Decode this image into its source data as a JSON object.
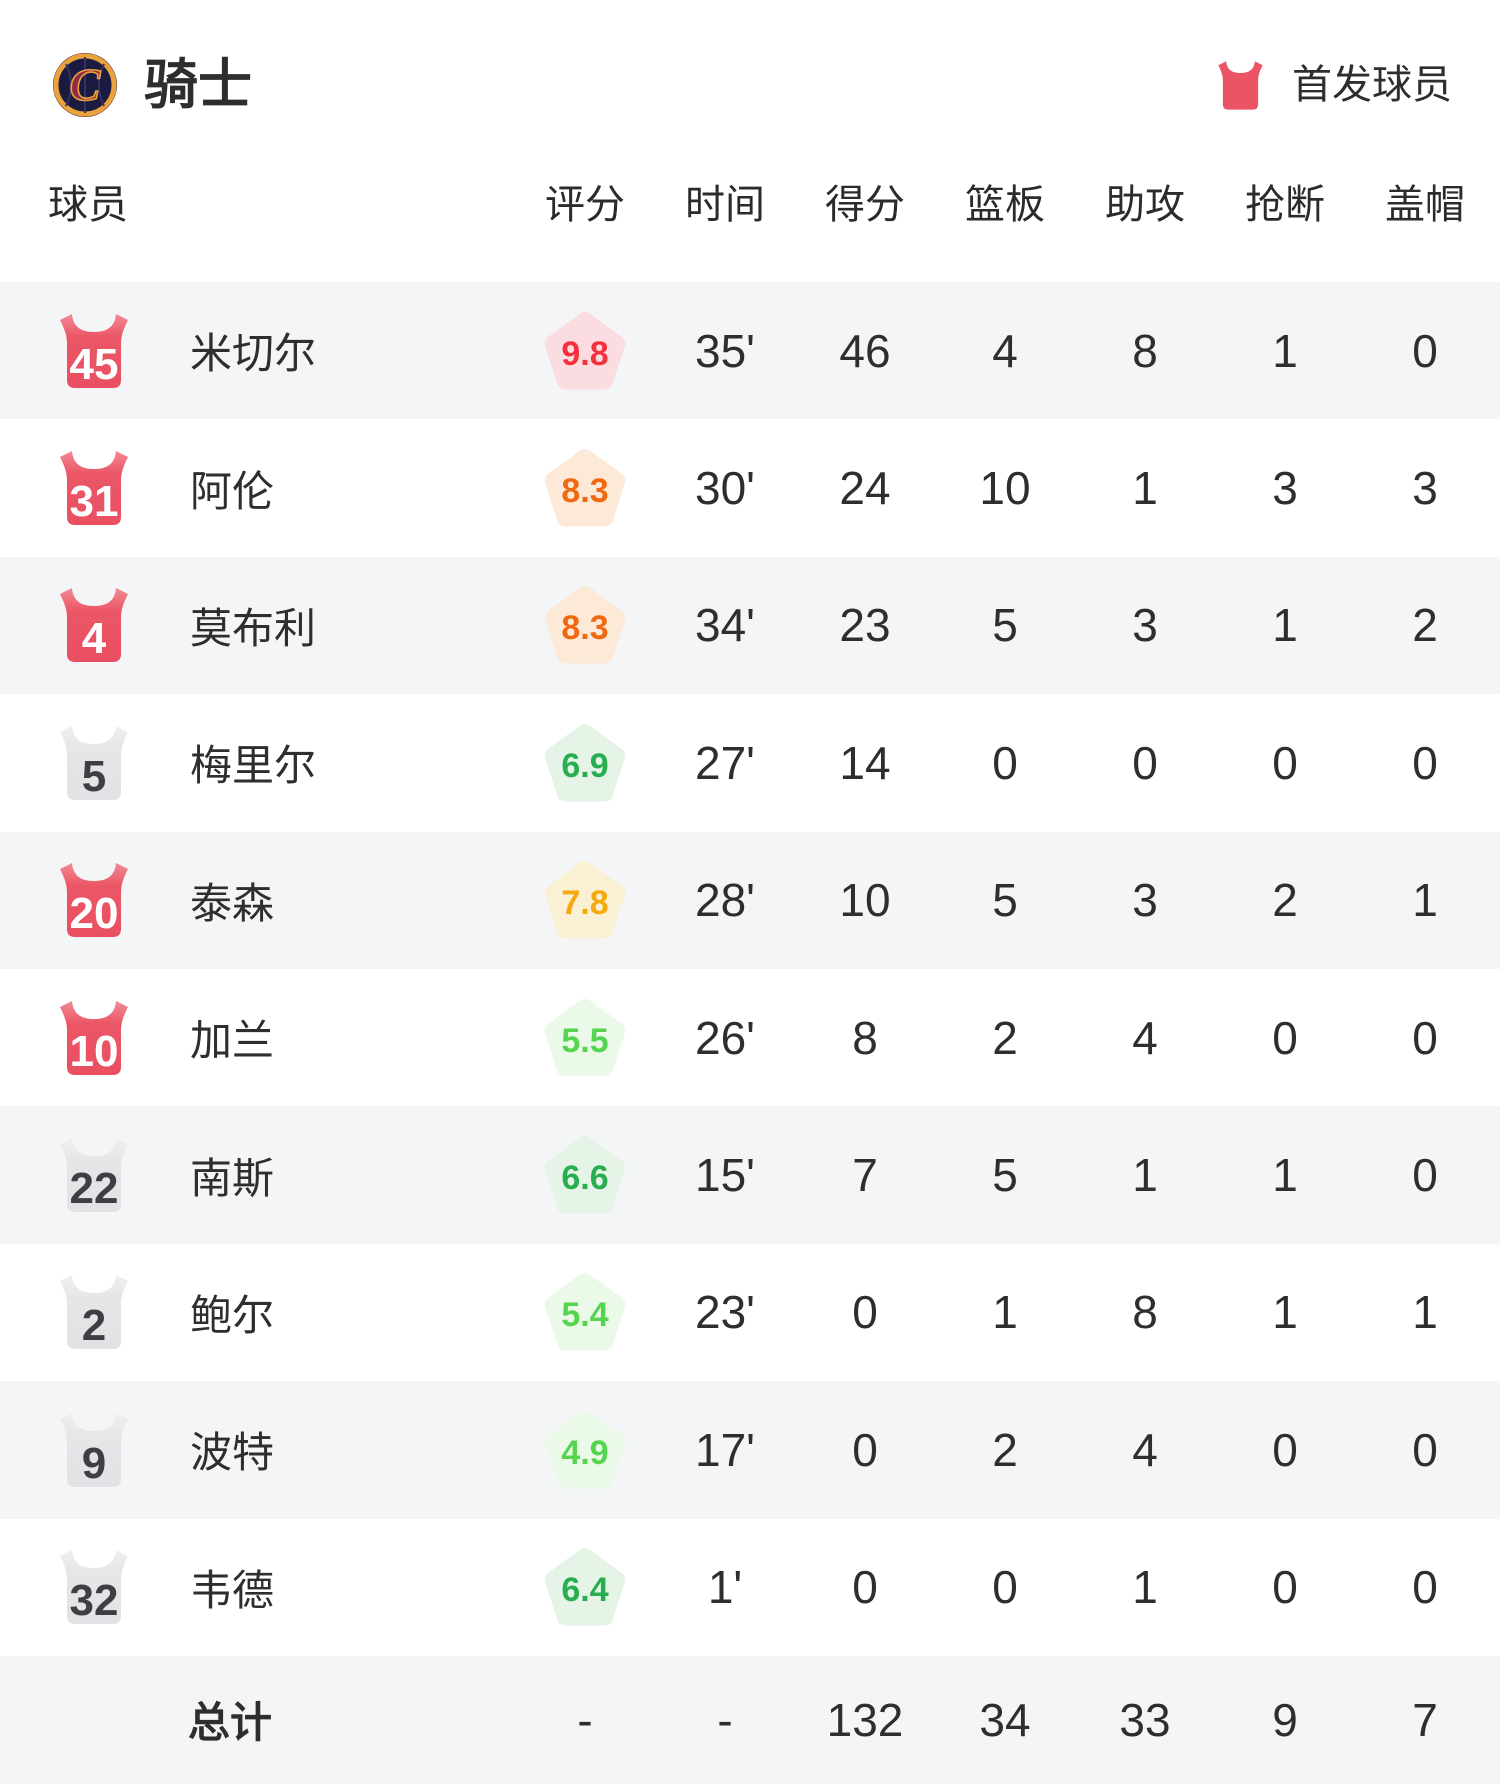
{
  "header": {
    "team_name": "骑士",
    "legend_label": "首发球员"
  },
  "table": {
    "columns": [
      "球员",
      "评分",
      "时间",
      "得分",
      "篮板",
      "助攻",
      "抢断",
      "盖帽"
    ],
    "rows": [
      {
        "number": "45",
        "starter": true,
        "name": "米切尔",
        "rating": "9.8",
        "tier": "red",
        "time": "35'",
        "pts": "46",
        "reb": "4",
        "ast": "8",
        "stl": "1",
        "blk": "0"
      },
      {
        "number": "31",
        "starter": true,
        "name": "阿伦",
        "rating": "8.3",
        "tier": "orange",
        "time": "30'",
        "pts": "24",
        "reb": "10",
        "ast": "1",
        "stl": "3",
        "blk": "3"
      },
      {
        "number": "4",
        "starter": true,
        "name": "莫布利",
        "rating": "8.3",
        "tier": "orange",
        "time": "34'",
        "pts": "23",
        "reb": "5",
        "ast": "3",
        "stl": "1",
        "blk": "2"
      },
      {
        "number": "5",
        "starter": false,
        "name": "梅里尔",
        "rating": "6.9",
        "tier": "green",
        "time": "27'",
        "pts": "14",
        "reb": "0",
        "ast": "0",
        "stl": "0",
        "blk": "0"
      },
      {
        "number": "20",
        "starter": true,
        "name": "泰森",
        "rating": "7.8",
        "tier": "amber",
        "time": "28'",
        "pts": "10",
        "reb": "5",
        "ast": "3",
        "stl": "2",
        "blk": "1"
      },
      {
        "number": "10",
        "starter": true,
        "name": "加兰",
        "rating": "5.5",
        "tier": "lightgreen",
        "time": "26'",
        "pts": "8",
        "reb": "2",
        "ast": "4",
        "stl": "0",
        "blk": "0"
      },
      {
        "number": "22",
        "starter": false,
        "name": "南斯",
        "rating": "6.6",
        "tier": "green",
        "time": "15'",
        "pts": "7",
        "reb": "5",
        "ast": "1",
        "stl": "1",
        "blk": "0"
      },
      {
        "number": "2",
        "starter": false,
        "name": "鲍尔",
        "rating": "5.4",
        "tier": "lightgreen",
        "time": "23'",
        "pts": "0",
        "reb": "1",
        "ast": "8",
        "stl": "1",
        "blk": "1"
      },
      {
        "number": "9",
        "starter": false,
        "name": "波特",
        "rating": "4.9",
        "tier": "lightgreen",
        "time": "17'",
        "pts": "0",
        "reb": "2",
        "ast": "4",
        "stl": "0",
        "blk": "0"
      },
      {
        "number": "32",
        "starter": false,
        "name": "韦德",
        "rating": "6.4",
        "tier": "green",
        "time": "1'",
        "pts": "0",
        "reb": "0",
        "ast": "1",
        "stl": "0",
        "blk": "0"
      }
    ],
    "total": {
      "label": "总计",
      "rating": "-",
      "time": "-",
      "pts": "132",
      "reb": "34",
      "ast": "33",
      "stl": "9",
      "blk": "7"
    }
  },
  "colors": {
    "accent_red": "#EA5464",
    "row_stripe": "#F4F5F7",
    "text_primary": "#2E2E2E",
    "bench_jersey": "#E4E4E6",
    "bench_number": "#3F3F43",
    "rating_tiers": {
      "red": {
        "bg": "#FBDCE0",
        "text": "#F5303D"
      },
      "orange": {
        "bg": "#FCE9D8",
        "text": "#F0680F"
      },
      "amber": {
        "bg": "#FAF0D4",
        "text": "#F6A90B"
      },
      "green": {
        "bg": "#E6F4E7",
        "text": "#27AE4F"
      },
      "lightgreen": {
        "bg": "#EAF9E8",
        "text": "#55D54F"
      }
    }
  }
}
